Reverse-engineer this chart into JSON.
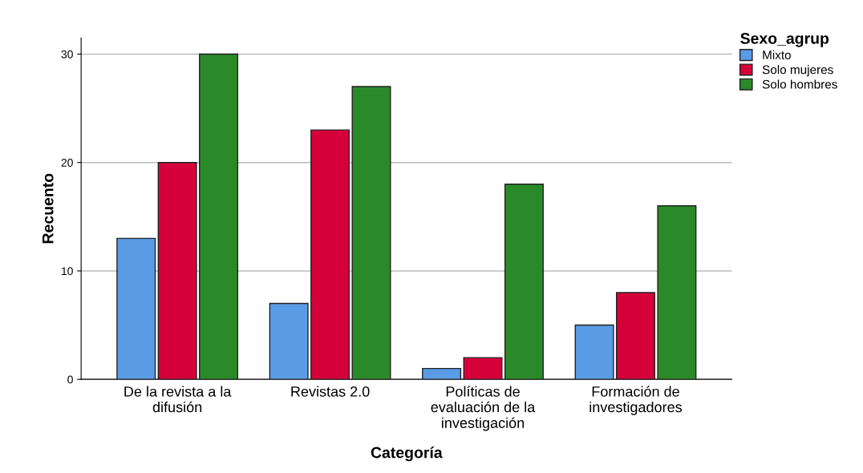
{
  "chart_data": {
    "type": "bar",
    "xlabel": "Categoría",
    "ylabel": "Recuento",
    "legend_title": "Sexo_agrup",
    "categories": [
      "De la revista a la\ndifusión",
      "Revistas 2.0",
      "Políticas de\nevaluación de la\ninvestigación",
      "Formación de\ninvestigadores"
    ],
    "series": [
      {
        "name": "Mixto",
        "color": "#5a9be6",
        "values": [
          13,
          7,
          1,
          5
        ]
      },
      {
        "name": "Solo mujeres",
        "color": "#d5003a",
        "values": [
          20,
          23,
          2,
          8
        ]
      },
      {
        "name": "Solo hombres",
        "color": "#2a8a2a",
        "values": [
          30,
          27,
          18,
          16
        ]
      }
    ],
    "ylim": [
      0,
      31.5
    ],
    "yticks": [
      0,
      10,
      20,
      30
    ],
    "grid": "y",
    "legend": "top right"
  }
}
